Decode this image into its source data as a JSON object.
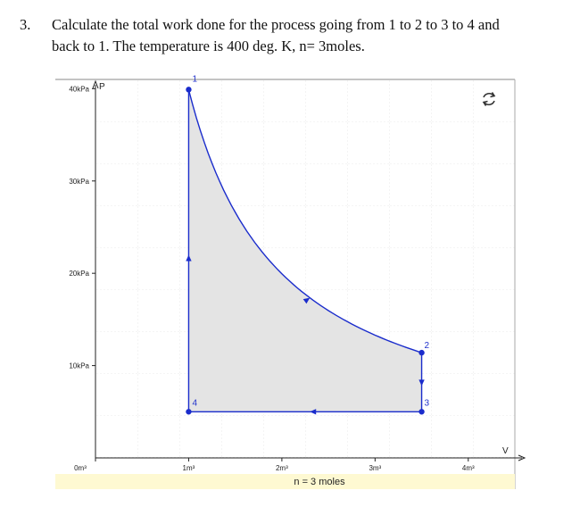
{
  "question": {
    "number": "3.",
    "line1": "Calculate the total work done for the process going from 1 to 2 to 3 to 4 and",
    "line2": "back to 1. The temperature is 400 deg. K, n= 3moles."
  },
  "chart_data": {
    "type": "line",
    "xlabel": "V",
    "ylabel": "P",
    "x_ticks": [
      "0m³",
      "1m³",
      "2m³",
      "3m³",
      "4m³"
    ],
    "y_ticks": [
      "10kPa",
      "20kPa",
      "30kPa",
      "40kPa"
    ],
    "xlim": [
      0,
      4.5
    ],
    "ylim": [
      0,
      41
    ],
    "points": [
      {
        "label": "1",
        "x": 1.0,
        "y": 39.9
      },
      {
        "label": "2",
        "x": 3.5,
        "y": 11.4
      },
      {
        "label": "3",
        "x": 3.5,
        "y": 5.0
      },
      {
        "label": "4",
        "x": 1.0,
        "y": 5.0
      }
    ],
    "footer": "n = 3 moles",
    "colors": {
      "path": "#1a2ccc",
      "fill": "#e4e4e4",
      "footer_bg": "#fef9d2"
    },
    "icons": [
      "refresh-icon"
    ]
  }
}
